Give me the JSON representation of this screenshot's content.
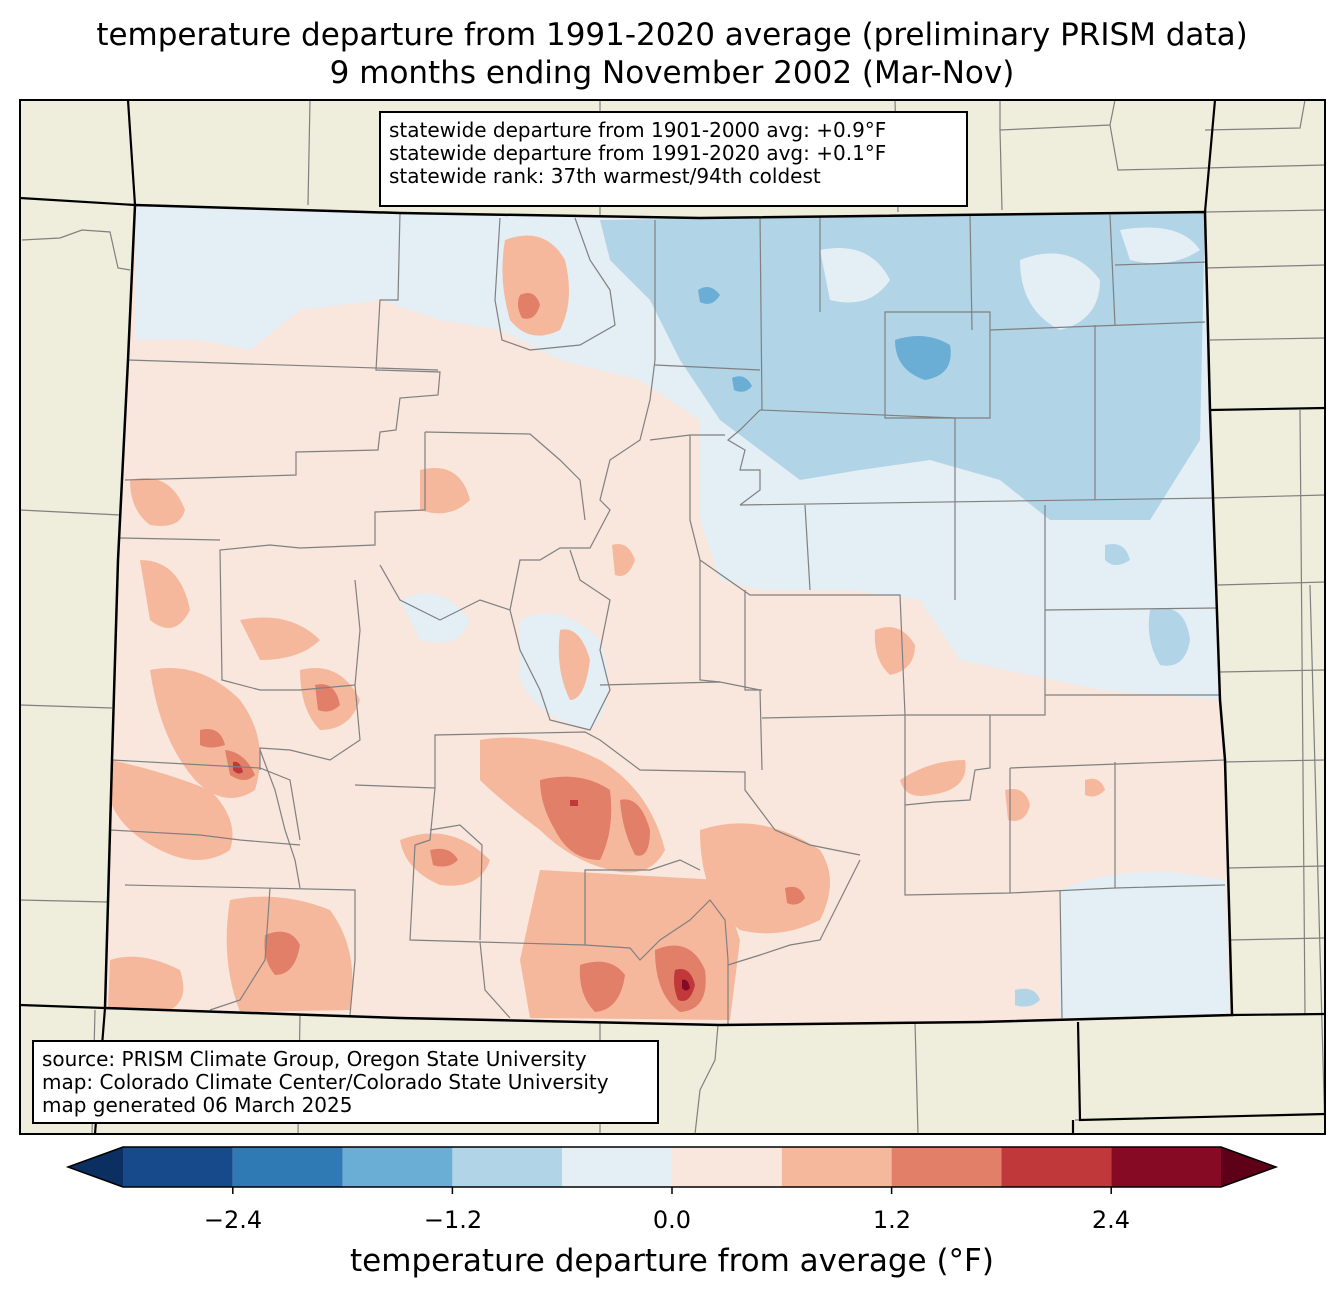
{
  "title": {
    "line1": "temperature departure from 1991-2020 average (preliminary PRISM data)",
    "line2": "9 months ending November 2002 (Mar-Nov)"
  },
  "stats": {
    "line1": "statewide departure from 1901-2000 avg: +0.9°F",
    "line2": "statewide departure from 1991-2020 avg: +0.1°F",
    "line3": "statewide rank: 37th warmest/94th coldest"
  },
  "source": {
    "line1": "source: PRISM Climate Group, Oregon State University",
    "line2": "map: Colorado Climate Center/Colorado State University",
    "line3": "map generated 06 March 2025"
  },
  "colorbar": {
    "label": "temperature departure from average (°F)",
    "ticks": [
      "−2.4",
      "−1.2",
      "0.0",
      "1.2",
      "2.4"
    ],
    "bins": [
      {
        "from": -3.0,
        "to": -2.4,
        "color": "#174a8b"
      },
      {
        "from": -2.4,
        "to": -1.8,
        "color": "#2f79b5"
      },
      {
        "from": -1.8,
        "to": -1.2,
        "color": "#6aadd5"
      },
      {
        "from": -1.2,
        "to": -0.6,
        "color": "#b1d4e7"
      },
      {
        "from": -0.6,
        "to": 0.0,
        "color": "#e4eef5"
      },
      {
        "from": 0.0,
        "to": 0.6,
        "color": "#f9e6dd"
      },
      {
        "from": 0.6,
        "to": 1.2,
        "color": "#f6b89c"
      },
      {
        "from": 1.2,
        "to": 1.8,
        "color": "#e27f69"
      },
      {
        "from": 1.8,
        "to": 2.4,
        "color": "#c1383a"
      },
      {
        "from": 2.4,
        "to": 3.0,
        "color": "#870a24"
      }
    ],
    "under_color": "#0a2f60",
    "over_color": "#5f0019"
  },
  "colors": {
    "land": "#efeddb",
    "county_line": "#808080",
    "state_line": "#000000"
  }
}
